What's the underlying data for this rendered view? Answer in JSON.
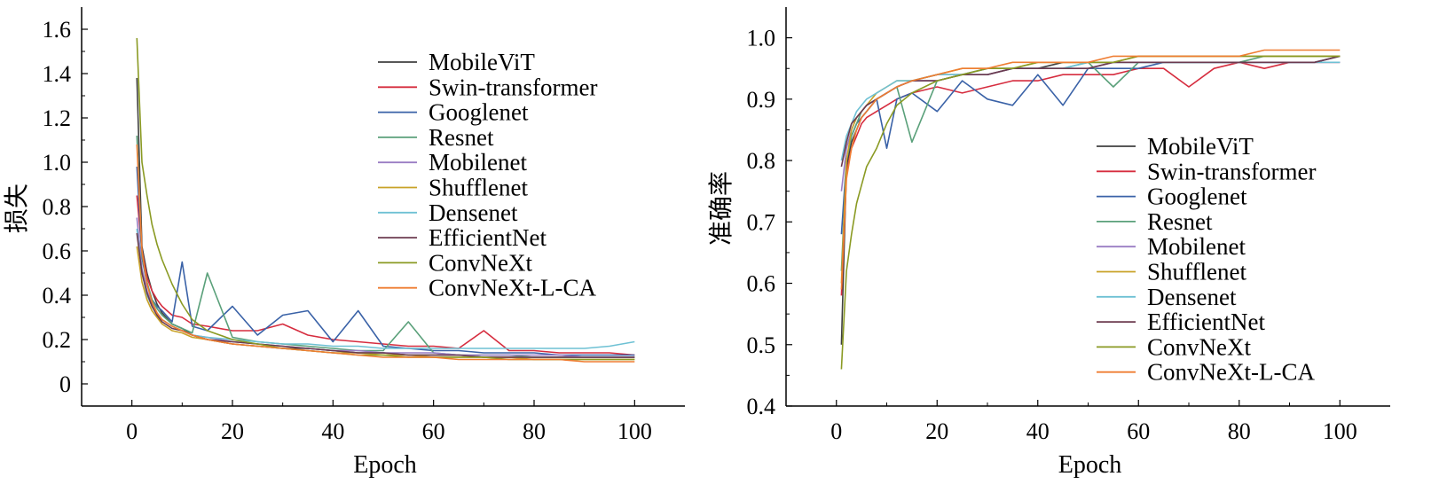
{
  "chart_data": [
    {
      "type": "line",
      "xlabel": "Epoch",
      "ylabel": "损失",
      "xlim": [
        -10,
        110
      ],
      "ylim": [
        -0.1,
        1.7
      ],
      "xticks": [
        0,
        20,
        40,
        60,
        80,
        100
      ],
      "yticks": [
        0,
        0.2,
        0.4,
        0.6,
        0.8,
        1.0,
        1.2,
        1.4,
        1.6
      ],
      "ytick_labels": [
        "0",
        "0.2",
        "0.4",
        "0.6",
        "0.8",
        "1.0",
        "1.2",
        "1.4",
        "1.6"
      ],
      "legend_position": "upper-right",
      "x": [
        1,
        2,
        3,
        4,
        5,
        6,
        8,
        10,
        12,
        15,
        20,
        25,
        30,
        35,
        40,
        45,
        50,
        55,
        60,
        65,
        70,
        75,
        80,
        85,
        90,
        95,
        100
      ],
      "series": [
        {
          "name": "MobileViT",
          "color": "#404040",
          "values": [
            1.38,
            0.62,
            0.5,
            0.42,
            0.36,
            0.32,
            0.27,
            0.25,
            0.22,
            0.2,
            0.18,
            0.17,
            0.16,
            0.16,
            0.15,
            0.14,
            0.14,
            0.13,
            0.13,
            0.13,
            0.12,
            0.12,
            0.12,
            0.12,
            0.12,
            0.12,
            0.12
          ]
        },
        {
          "name": "Swin-transformer",
          "color": "#d62d3f",
          "values": [
            0.85,
            0.6,
            0.48,
            0.42,
            0.38,
            0.35,
            0.31,
            0.3,
            0.27,
            0.26,
            0.24,
            0.24,
            0.27,
            0.22,
            0.2,
            0.19,
            0.18,
            0.17,
            0.17,
            0.16,
            0.24,
            0.15,
            0.15,
            0.14,
            0.14,
            0.14,
            0.13
          ]
        },
        {
          "name": "Googlenet",
          "color": "#3a62a7",
          "values": [
            0.98,
            0.57,
            0.45,
            0.38,
            0.35,
            0.33,
            0.28,
            0.55,
            0.26,
            0.24,
            0.35,
            0.22,
            0.31,
            0.33,
            0.19,
            0.33,
            0.17,
            0.16,
            0.15,
            0.15,
            0.14,
            0.14,
            0.14,
            0.13,
            0.13,
            0.13,
            0.13
          ]
        },
        {
          "name": "Resnet",
          "color": "#5aa07a",
          "values": [
            1.12,
            0.58,
            0.46,
            0.38,
            0.34,
            0.31,
            0.27,
            0.25,
            0.23,
            0.5,
            0.21,
            0.19,
            0.18,
            0.17,
            0.16,
            0.15,
            0.15,
            0.28,
            0.14,
            0.13,
            0.13,
            0.13,
            0.12,
            0.12,
            0.12,
            0.12,
            0.12
          ]
        },
        {
          "name": "Mobilenet",
          "color": "#9a7dc4",
          "values": [
            0.75,
            0.52,
            0.42,
            0.36,
            0.32,
            0.29,
            0.26,
            0.24,
            0.22,
            0.21,
            0.19,
            0.18,
            0.17,
            0.16,
            0.15,
            0.15,
            0.14,
            0.14,
            0.14,
            0.13,
            0.13,
            0.13,
            0.13,
            0.13,
            0.12,
            0.12,
            0.12
          ]
        },
        {
          "name": "Shufflenet",
          "color": "#c9a227",
          "values": [
            0.62,
            0.46,
            0.38,
            0.33,
            0.3,
            0.27,
            0.24,
            0.23,
            0.21,
            0.2,
            0.18,
            0.17,
            0.16,
            0.15,
            0.14,
            0.14,
            0.13,
            0.13,
            0.12,
            0.12,
            0.12,
            0.12,
            0.11,
            0.11,
            0.11,
            0.11,
            0.11
          ]
        },
        {
          "name": "Densenet",
          "color": "#6ec1d4",
          "values": [
            0.7,
            0.5,
            0.4,
            0.35,
            0.31,
            0.29,
            0.26,
            0.24,
            0.22,
            0.21,
            0.2,
            0.19,
            0.18,
            0.18,
            0.17,
            0.17,
            0.16,
            0.16,
            0.16,
            0.16,
            0.16,
            0.16,
            0.16,
            0.16,
            0.16,
            0.17,
            0.19
          ]
        },
        {
          "name": "EfficientNet",
          "color": "#6b3a4f",
          "values": [
            0.68,
            0.5,
            0.41,
            0.35,
            0.31,
            0.28,
            0.25,
            0.24,
            0.22,
            0.2,
            0.19,
            0.18,
            0.17,
            0.16,
            0.15,
            0.14,
            0.14,
            0.13,
            0.13,
            0.13,
            0.12,
            0.12,
            0.12,
            0.12,
            0.12,
            0.12,
            0.12
          ]
        },
        {
          "name": "ConvNeXt",
          "color": "#8a9a23",
          "values": [
            1.56,
            1.0,
            0.85,
            0.72,
            0.63,
            0.56,
            0.45,
            0.36,
            0.29,
            0.24,
            0.2,
            0.18,
            0.16,
            0.15,
            0.14,
            0.13,
            0.13,
            0.12,
            0.12,
            0.12,
            0.12,
            0.11,
            0.11,
            0.11,
            0.11,
            0.11,
            0.11
          ]
        },
        {
          "name": "ConvNeXt-L-CA",
          "color": "#ef7d32",
          "values": [
            1.08,
            0.6,
            0.45,
            0.37,
            0.32,
            0.29,
            0.26,
            0.24,
            0.22,
            0.2,
            0.18,
            0.17,
            0.16,
            0.15,
            0.14,
            0.13,
            0.12,
            0.12,
            0.12,
            0.11,
            0.11,
            0.11,
            0.11,
            0.11,
            0.1,
            0.1,
            0.1
          ]
        }
      ]
    },
    {
      "type": "line",
      "xlabel": "Epoch",
      "ylabel": "准确率",
      "xlim": [
        -10,
        110
      ],
      "ylim": [
        0.4,
        1.05
      ],
      "xticks": [
        0,
        20,
        40,
        60,
        80,
        100
      ],
      "yticks": [
        0.4,
        0.5,
        0.6,
        0.7,
        0.8,
        0.9,
        1.0
      ],
      "ytick_labels": [
        "0.4",
        "0.5",
        "0.6",
        "0.7",
        "0.8",
        "0.9",
        "1.0"
      ],
      "legend_position": "lower-right",
      "x": [
        1,
        2,
        3,
        4,
        5,
        6,
        8,
        10,
        12,
        15,
        20,
        25,
        30,
        35,
        40,
        45,
        50,
        55,
        60,
        65,
        70,
        75,
        80,
        85,
        90,
        95,
        100
      ],
      "series": [
        {
          "name": "MobileViT",
          "color": "#404040",
          "values": [
            0.5,
            0.79,
            0.83,
            0.85,
            0.87,
            0.88,
            0.9,
            0.91,
            0.92,
            0.93,
            0.94,
            0.94,
            0.95,
            0.95,
            0.95,
            0.96,
            0.96,
            0.96,
            0.96,
            0.96,
            0.96,
            0.96,
            0.96,
            0.96,
            0.96,
            0.96,
            0.97
          ]
        },
        {
          "name": "Swin-transformer",
          "color": "#d62d3f",
          "values": [
            0.58,
            0.78,
            0.82,
            0.84,
            0.86,
            0.87,
            0.88,
            0.89,
            0.9,
            0.91,
            0.92,
            0.91,
            0.92,
            0.93,
            0.93,
            0.94,
            0.94,
            0.94,
            0.95,
            0.95,
            0.92,
            0.95,
            0.96,
            0.95,
            0.96,
            0.96,
            0.96
          ]
        },
        {
          "name": "Googlenet",
          "color": "#3a62a7",
          "values": [
            0.68,
            0.8,
            0.84,
            0.86,
            0.87,
            0.88,
            0.9,
            0.82,
            0.9,
            0.91,
            0.88,
            0.93,
            0.9,
            0.89,
            0.94,
            0.89,
            0.95,
            0.95,
            0.95,
            0.96,
            0.96,
            0.96,
            0.96,
            0.96,
            0.96,
            0.96,
            0.97
          ]
        },
        {
          "name": "Resnet",
          "color": "#5aa07a",
          "values": [
            0.62,
            0.8,
            0.84,
            0.86,
            0.88,
            0.89,
            0.9,
            0.91,
            0.92,
            0.83,
            0.93,
            0.94,
            0.94,
            0.95,
            0.95,
            0.95,
            0.96,
            0.92,
            0.96,
            0.96,
            0.96,
            0.96,
            0.96,
            0.97,
            0.97,
            0.97,
            0.97
          ]
        },
        {
          "name": "Mobilenet",
          "color": "#9a7dc4",
          "values": [
            0.75,
            0.82,
            0.85,
            0.87,
            0.88,
            0.89,
            0.9,
            0.91,
            0.92,
            0.93,
            0.93,
            0.94,
            0.94,
            0.95,
            0.95,
            0.95,
            0.95,
            0.96,
            0.96,
            0.96,
            0.96,
            0.96,
            0.96,
            0.96,
            0.96,
            0.96,
            0.96
          ]
        },
        {
          "name": "Shufflenet",
          "color": "#c9a227",
          "values": [
            0.6,
            0.8,
            0.85,
            0.87,
            0.88,
            0.89,
            0.91,
            0.92,
            0.93,
            0.93,
            0.94,
            0.95,
            0.95,
            0.95,
            0.96,
            0.96,
            0.96,
            0.96,
            0.97,
            0.97,
            0.97,
            0.97,
            0.97,
            0.97,
            0.97,
            0.97,
            0.97
          ]
        },
        {
          "name": "Densenet",
          "color": "#6ec1d4",
          "values": [
            0.8,
            0.84,
            0.86,
            0.88,
            0.89,
            0.9,
            0.91,
            0.92,
            0.93,
            0.93,
            0.94,
            0.94,
            0.95,
            0.95,
            0.95,
            0.95,
            0.96,
            0.96,
            0.96,
            0.96,
            0.96,
            0.96,
            0.96,
            0.96,
            0.96,
            0.96,
            0.96
          ]
        },
        {
          "name": "EfficientNet",
          "color": "#6b3a4f",
          "values": [
            0.79,
            0.83,
            0.86,
            0.87,
            0.88,
            0.89,
            0.9,
            0.91,
            0.92,
            0.93,
            0.93,
            0.94,
            0.94,
            0.95,
            0.95,
            0.95,
            0.95,
            0.96,
            0.96,
            0.96,
            0.96,
            0.96,
            0.96,
            0.96,
            0.96,
            0.96,
            0.97
          ]
        },
        {
          "name": "ConvNeXt",
          "color": "#8a9a23",
          "values": [
            0.46,
            0.62,
            0.68,
            0.73,
            0.76,
            0.79,
            0.82,
            0.86,
            0.89,
            0.91,
            0.93,
            0.94,
            0.95,
            0.95,
            0.96,
            0.96,
            0.96,
            0.96,
            0.97,
            0.97,
            0.97,
            0.97,
            0.97,
            0.97,
            0.97,
            0.97,
            0.97
          ]
        },
        {
          "name": "ConvNeXt-L-CA",
          "color": "#ef7d32",
          "values": [
            0.59,
            0.77,
            0.82,
            0.85,
            0.87,
            0.88,
            0.9,
            0.91,
            0.92,
            0.93,
            0.94,
            0.95,
            0.95,
            0.96,
            0.96,
            0.96,
            0.96,
            0.97,
            0.97,
            0.97,
            0.97,
            0.97,
            0.97,
            0.98,
            0.98,
            0.98,
            0.98
          ]
        }
      ]
    }
  ]
}
